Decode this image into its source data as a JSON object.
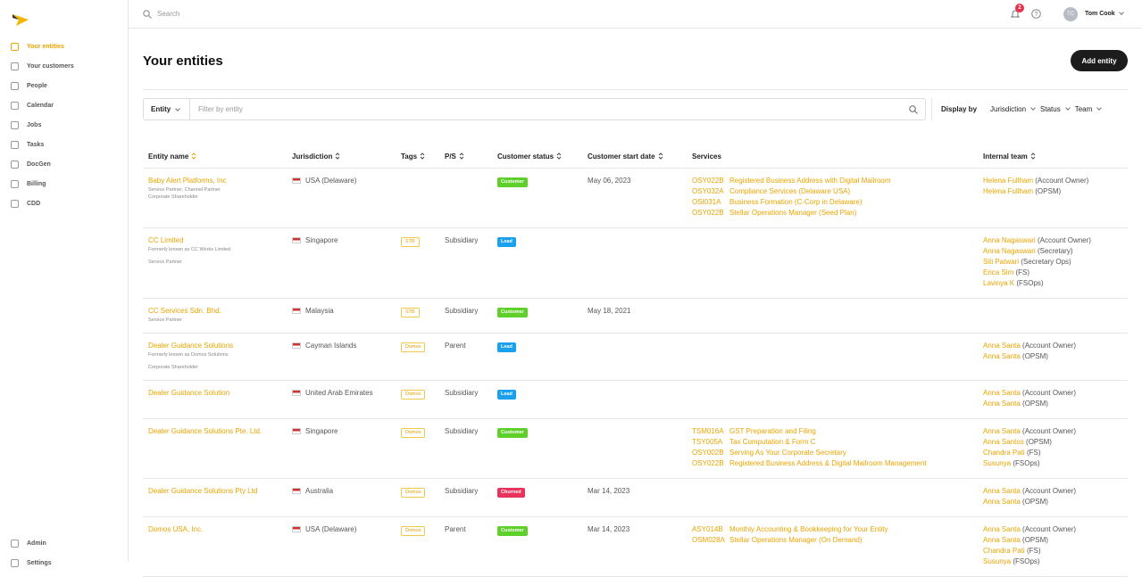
{
  "sidebar": {
    "nav": [
      "Your entities",
      "Your customers",
      "People",
      "Calendar",
      "Jobs",
      "Tasks",
      "DocGen",
      "Billing",
      "CDD"
    ],
    "bottom": [
      "Admin",
      "Settings"
    ]
  },
  "header": {
    "search_placeholder": "Search",
    "notifications": "2",
    "user_initials": "TC",
    "user_name": "Tom Cook"
  },
  "page": {
    "title": "Your entities",
    "add_button": "Add entity"
  },
  "filters": {
    "entity_select": "Entity",
    "filter_placeholder": "Filter by entity",
    "display_by": "Display by",
    "options": [
      "Jurisdiction",
      "Status",
      "Team"
    ]
  },
  "table": {
    "columns": [
      "Entity name",
      "Jurisdiction",
      "Tags",
      "P/S",
      "Customer status",
      "Customer start date",
      "Services",
      "Internal team"
    ],
    "rows": [
      {
        "name": "Baby Alert Platforms, Inc",
        "notes": [
          "Service Partner, Channel Partner",
          "Corporate Shareholder"
        ],
        "jurisdiction": "USA (Delaware)",
        "status": {
          "label": "Customer",
          "color": "#5fcf2a"
        },
        "start_date": "May 06, 2023",
        "services": [
          {
            "code": "OSY022B",
            "name": "Registered Business Address with Digital Mailroom"
          },
          {
            "code": "OSY032A",
            "name": "Compliance Services (Delaware USA)"
          },
          {
            "code": "OSI031A",
            "name": "Business Formation (C-Corp in Delaware)"
          },
          {
            "code": "OSY022B",
            "name": "Stellar Operations Manager (Seed Plan)"
          }
        ],
        "team": [
          {
            "name": "Helena Fullham",
            "role": "(Account Owner)"
          },
          {
            "name": "Helena Fullham",
            "role": "(OPSM)"
          }
        ]
      },
      {
        "name": "CC Limited",
        "notes": [
          "Formerly known as CC Works Limited",
          "Service Partner"
        ],
        "jurisdiction": "Singapore",
        "tag": "STB",
        "ps": "Subsidiary",
        "status": {
          "label": "Lead",
          "color": "#1aa0ec"
        },
        "team": [
          {
            "name": "Anna Nagaswari",
            "role": "(Account Owner)"
          },
          {
            "name": "Anna Nagaswari",
            "role": "(Secretary)"
          },
          {
            "name": "Siti Patwari",
            "role": "(Secretary Ops)"
          },
          {
            "name": "Erica Sim",
            "role": "(FS)"
          },
          {
            "name": "Lavinya K",
            "role": "(FSOps)"
          }
        ]
      },
      {
        "name": "CC Services Sdn. Bhd.",
        "notes": [
          "Service Partner"
        ],
        "jurisdiction": "Malaysia",
        "tag": "STB",
        "ps": "Subsidiary",
        "status": {
          "label": "Customer",
          "color": "#5fcf2a"
        },
        "start_date": "May 18, 2021"
      },
      {
        "name": "Dealer Guidance Solutions",
        "notes": [
          "Formerly known as Domos Solutions",
          "Corporate Shareholder"
        ],
        "jurisdiction": "Cayman Islands",
        "tag": "Domos",
        "ps": "Parent",
        "status": {
          "label": "Lead",
          "color": "#1aa0ec"
        },
        "team": [
          {
            "name": "Anna Santa",
            "role": "(Account Owner)"
          },
          {
            "name": "Anna Santa",
            "role": "(OPSM)"
          }
        ]
      },
      {
        "name": "Dealer Guidance Solution",
        "jurisdiction": "United Arab Emirates",
        "tag": "Domos",
        "ps": "Subsidiary",
        "status": {
          "label": "Lead",
          "color": "#1aa0ec"
        },
        "team": [
          {
            "name": "Anna Santa",
            "role": "(Account Owner)"
          },
          {
            "name": "Anna Santa",
            "role": "(OPSM)"
          }
        ]
      },
      {
        "name": "Dealer Guidance Solutions Pte. Ltd.",
        "jurisdiction": "Singapore",
        "tag": "Domos",
        "ps": "Subsidiary",
        "status": {
          "label": "Customer",
          "color": "#5fcf2a"
        },
        "services": [
          {
            "code": "TSM016A",
            "name": "GST Preparation and Filing"
          },
          {
            "code": "TSY005A",
            "name": "Tax Computation & Form C"
          },
          {
            "code": "OSY002B",
            "name": "Serving As Your Corporate Secretary"
          },
          {
            "code": "OSY022B",
            "name": "Registered Business Address & Digital Mailroom Management"
          }
        ],
        "team": [
          {
            "name": "Anna Santa",
            "role": "(Account Owner)"
          },
          {
            "name": "Anna Santos",
            "role": "(OPSM)"
          },
          {
            "name": "Chandra Pati",
            "role": "(FS)"
          },
          {
            "name": "Susunya",
            "role": "(FSOps)"
          }
        ]
      },
      {
        "name": "Dealer Guidance Solutions Pty Ltd",
        "jurisdiction": "Australia",
        "tag": "Domos",
        "ps": "Subsidiary",
        "status": {
          "label": "Churned",
          "color": "#e8335a"
        },
        "start_date": "Mar 14, 2023",
        "team": [
          {
            "name": "Anna Santa",
            "role": "(Account Owner)"
          },
          {
            "name": "Anna Santa",
            "role": "(OPSM)"
          }
        ]
      },
      {
        "name": "Domos USA, Inc.",
        "jurisdiction": "USA (Delaware)",
        "tag": "Domos",
        "ps": "Parent",
        "status": {
          "label": "Customer",
          "color": "#5fcf2a"
        },
        "start_date": "Mar 14, 2023",
        "services": [
          {
            "code": "ASY014B",
            "name": "Monthly Accounting & Bookkeeping for Your Entity"
          },
          {
            "code": "OSM028A",
            "name": "Stellar Operations Manager (On Demand)"
          }
        ],
        "team": [
          {
            "name": "Anna Santa",
            "role": "(Account Owner)"
          },
          {
            "name": "Anna Santa",
            "role": "(OPSM)"
          },
          {
            "name": "Chandra Pati",
            "role": "(FS)"
          },
          {
            "name": "Susunya",
            "role": "(FSOps)"
          }
        ]
      }
    ]
  }
}
